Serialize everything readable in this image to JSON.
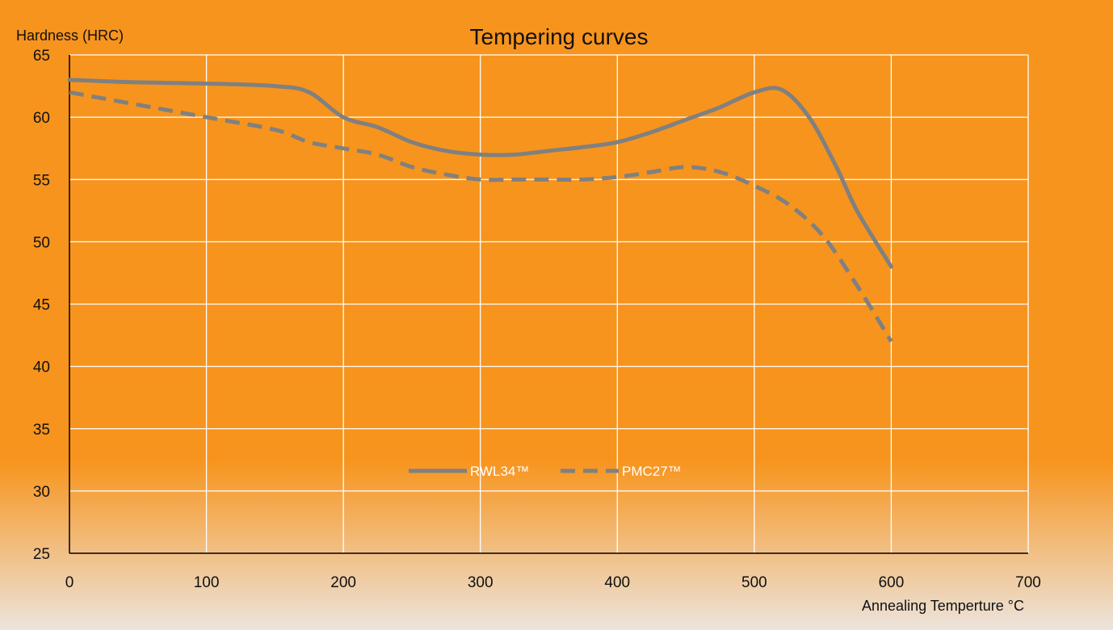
{
  "chart_data": {
    "type": "line",
    "title": "Tempering curves",
    "ylabel": "Hardness (HRC)",
    "xlabel": "Annealing Temperture °C",
    "xlim": [
      0,
      700
    ],
    "ylim": [
      25,
      65
    ],
    "xticks": [
      0,
      100,
      200,
      300,
      400,
      500,
      600,
      700
    ],
    "yticks": [
      25,
      30,
      35,
      40,
      45,
      50,
      55,
      60,
      65
    ],
    "grid": true,
    "legend_position": "center",
    "series": [
      {
        "name": "RWL34™",
        "style": "solid",
        "color": "#808080",
        "points": [
          [
            0,
            63
          ],
          [
            50,
            62.8
          ],
          [
            100,
            62.7
          ],
          [
            150,
            62.5
          ],
          [
            175,
            62
          ],
          [
            200,
            60
          ],
          [
            225,
            59.2
          ],
          [
            250,
            58
          ],
          [
            275,
            57.3
          ],
          [
            300,
            57
          ],
          [
            325,
            57
          ],
          [
            350,
            57.3
          ],
          [
            375,
            57.6
          ],
          [
            400,
            58
          ],
          [
            425,
            58.8
          ],
          [
            450,
            59.8
          ],
          [
            475,
            60.8
          ],
          [
            500,
            62
          ],
          [
            520,
            62.2
          ],
          [
            540,
            60
          ],
          [
            560,
            56
          ],
          [
            575,
            52.5
          ],
          [
            600,
            48
          ]
        ]
      },
      {
        "name": "PMC27™",
        "style": "dashed",
        "color": "#808080",
        "points": [
          [
            0,
            62
          ],
          [
            50,
            61
          ],
          [
            100,
            60
          ],
          [
            150,
            59
          ],
          [
            175,
            58
          ],
          [
            200,
            57.5
          ],
          [
            225,
            57
          ],
          [
            250,
            56
          ],
          [
            275,
            55.4
          ],
          [
            300,
            55
          ],
          [
            325,
            55
          ],
          [
            350,
            55
          ],
          [
            375,
            55
          ],
          [
            400,
            55.2
          ],
          [
            425,
            55.6
          ],
          [
            450,
            56
          ],
          [
            475,
            55.6
          ],
          [
            500,
            54.5
          ],
          [
            525,
            53
          ],
          [
            550,
            50.5
          ],
          [
            575,
            46.5
          ],
          [
            600,
            42
          ]
        ]
      }
    ]
  },
  "colors": {
    "background_top": "#f7941d",
    "background_bottom": "#ece4dc",
    "grid": "#ffffff",
    "axis": "#000000",
    "series": "#808080"
  }
}
